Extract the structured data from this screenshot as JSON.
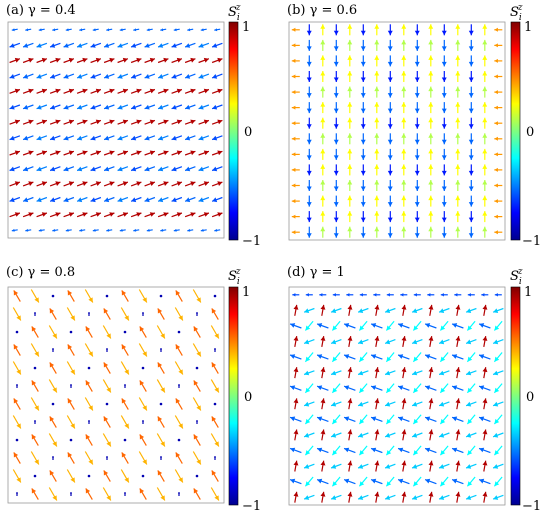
{
  "chart_data": [
    {
      "type": "quiver",
      "panel": "a",
      "title": "(a) γ = 0.4",
      "colorbar": {
        "label": "S_i^z",
        "label_main": "S",
        "label_sub": "i",
        "label_sup": "z",
        "ticks": [
          "1",
          "0",
          "−1"
        ],
        "range": [
          -1,
          1
        ]
      },
      "grid": {
        "cols": 16,
        "rows": 14
      },
      "pattern": "two-sublattice: even rows point up-right with S_z ≈ +0.9 (red), odd rows point down-left with S_z ≈ −0.6 (blue); top and bottom rows short blue",
      "sz_values": [
        0.9,
        -0.6
      ]
    },
    {
      "type": "quiver",
      "panel": "b",
      "title": "(b) γ = 0.6",
      "colorbar": {
        "label": "S_i^z",
        "label_main": "S",
        "label_sub": "i",
        "label_sup": "z",
        "ticks": [
          "1",
          "0",
          "−1"
        ],
        "range": [
          -1,
          1
        ]
      },
      "grid": {
        "cols": 16,
        "rows": 14
      },
      "pattern": "columnar: alternating columns point up (S_z ≈ +0.2, yellow-green) and down (S_z ≈ −0.6, blue); leftmost/rightmost columns orange horizontal",
      "sz_values": [
        0.2,
        -0.6,
        0.5
      ]
    },
    {
      "type": "quiver",
      "panel": "c",
      "title": "(c) γ = 0.8",
      "colorbar": {
        "label": "S_i^z",
        "label_main": "S",
        "label_sub": "i",
        "label_sup": "z",
        "ticks": [
          "1",
          "0",
          "−1"
        ],
        "range": [
          -1,
          1
        ]
      },
      "grid": {
        "cols": 12,
        "rows": 12
      },
      "pattern": "3-sublattice: most arrows point down-right with S_z ≈ +0.45 (orange), some up-left with S_z ≈ +0.6, every third site a small dot with S_z ≈ −0.9 (dark blue)",
      "sz_values": [
        0.45,
        0.6,
        0.2,
        -0.9
      ]
    },
    {
      "type": "quiver",
      "panel": "d",
      "title": "(d) γ = 1",
      "colorbar": {
        "label": "S_i^z",
        "label_main": "S",
        "label_sub": "i",
        "label_sup": "z",
        "ticks": [
          "1",
          "0",
          "−1"
        ],
        "range": [
          -1,
          1
        ]
      },
      "grid": {
        "cols": 16,
        "rows": 14
      },
      "pattern": "spiral-like: rows alternate between red arrows pointing up (S_z ≈ +0.9) and blue/cyan arrows pointing left or down (S_z ≈ −0.5)",
      "sz_values": [
        0.9,
        -0.5,
        0.6,
        -0.3
      ]
    }
  ]
}
